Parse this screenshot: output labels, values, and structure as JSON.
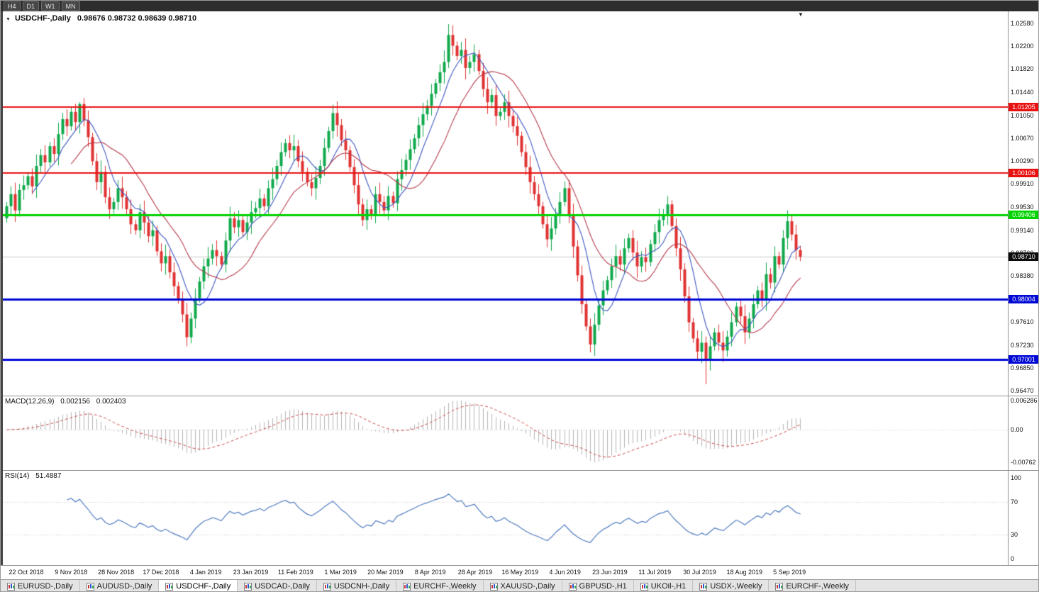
{
  "toolbar": {
    "timeframes": [
      "H4",
      "D1",
      "W1",
      "MN"
    ]
  },
  "icons": {
    "title_expander": "▼",
    "shift_marker": "▼"
  },
  "chart": {
    "title_symbol": "USDCHF-,Daily",
    "ohlc_text": "0.98676 0.98732 0.98639 0.98710",
    "current_price": "0.98710"
  },
  "chart_data": {
    "type": "candlestick",
    "symbol": "USDCHF",
    "timeframe": "Daily",
    "ylim": [
      0.9647,
      1.0258
    ],
    "y_axis_labels": [
      "1.02580",
      "1.02200",
      "1.01820",
      "1.01440",
      "1.01050",
      "1.00670",
      "1.00290",
      "0.99910",
      "0.99530",
      "0.99140",
      "0.98760",
      "0.98380",
      "0.98000",
      "0.97610",
      "0.97230",
      "0.96850",
      "0.96470"
    ],
    "x_axis_dates": [
      "22 Oct 2018",
      "9 Nov 2018",
      "28 Nov 2018",
      "17 Dec 2018",
      "4 Jan 2019",
      "23 Jan 2019",
      "11 Feb 2019",
      "1 Mar 2019",
      "20 Mar 2019",
      "8 Apr 2019",
      "28 Apr 2019",
      "16 May 2019",
      "4 Jun 2019",
      "23 Jun 2019",
      "11 Jul 2019",
      "30 Jul 2019",
      "18 Aug 2019",
      "5 Sep 2019"
    ],
    "hlines": [
      {
        "price": 1.01205,
        "label": "1.01205",
        "color": "#e81010",
        "width": 2,
        "role": "resistance"
      },
      {
        "price": 1.00106,
        "label": "1.00106",
        "color": "#e81010",
        "width": 2,
        "role": "resistance"
      },
      {
        "price": 0.99406,
        "label": "0.99406",
        "color": "#00d300",
        "width": 3,
        "role": "level"
      },
      {
        "price": 0.98004,
        "label": "0.98004",
        "color": "#0008d6",
        "width": 3,
        "role": "support"
      },
      {
        "price": 0.97001,
        "label": "0.97001",
        "color": "#0008d6",
        "width": 3,
        "role": "support"
      }
    ],
    "candles": {
      "first_open": 0.9935,
      "default_wick": 0.0012,
      "closes": [
        0.9955,
        0.9975,
        0.9948,
        0.9982,
        0.999,
        1.0005,
        0.9988,
        1.0022,
        1.004,
        1.0028,
        1.0055,
        1.0042,
        1.0075,
        1.01,
        1.0088,
        1.0112,
        1.0095,
        1.0125,
        1.0098,
        1.007,
        1.003,
        0.9995,
        1.0012,
        0.997,
        0.995,
        0.9962,
        0.9985,
        0.997,
        0.995,
        0.9925,
        0.9915,
        0.9945,
        0.9928,
        0.9905,
        0.9915,
        0.988,
        0.986,
        0.9872,
        0.9845,
        0.9822,
        0.98,
        0.9775,
        0.9737,
        0.9768,
        0.9802,
        0.983,
        0.9855,
        0.9868,
        0.9882,
        0.9872,
        0.9858,
        0.9898,
        0.9935,
        0.992,
        0.9932,
        0.9912,
        0.9928,
        0.9945,
        0.9952,
        0.9968,
        0.9955,
        0.9985,
        1.0,
        1.0022,
        1.0045,
        1.006,
        1.0048,
        1.0055,
        1.003,
        1.0012,
        0.9995,
        0.9985,
        1.0002,
        1.0022,
        1.0052,
        1.008,
        1.011,
        1.009,
        1.0065,
        1.0048,
        1.002,
        0.999,
        0.9958,
        0.9932,
        0.995,
        0.994,
        0.9975,
        0.9962,
        0.9948,
        0.9972,
        0.996,
        1.0,
        1.0015,
        1.0032,
        1.005,
        1.0068,
        1.009,
        1.0108,
        1.0122,
        1.0142,
        1.016,
        1.0178,
        1.0195,
        1.024,
        1.0222,
        1.0205,
        1.0215,
        1.0185,
        1.0195,
        1.0208,
        1.018,
        1.015,
        1.0128,
        1.014,
        1.0105,
        1.0112,
        1.0128,
        1.0105,
        1.0088,
        1.0072,
        1.0045,
        1.002,
        0.9995,
        0.9975,
        0.9955,
        0.9925,
        0.99,
        0.9918,
        0.9942,
        0.9962,
        0.9985,
        0.994,
        0.9888,
        0.984,
        0.9792,
        0.9755,
        0.9725,
        0.9758,
        0.979,
        0.9815,
        0.9832,
        0.9855,
        0.9872,
        0.9858,
        0.9885,
        0.9902,
        0.9878,
        0.9855,
        0.987,
        0.9862,
        0.9892,
        0.9912,
        0.9932,
        0.994,
        0.9958,
        0.9922,
        0.9885,
        0.985,
        0.9805,
        0.9762,
        0.9735,
        0.9713,
        0.9728,
        0.9698,
        0.9722,
        0.9745,
        0.9728,
        0.9715,
        0.9738,
        0.9762,
        0.9788,
        0.9772,
        0.9745,
        0.9768,
        0.9792,
        0.9815,
        0.98,
        0.9842,
        0.9828,
        0.9872,
        0.9858,
        0.9902,
        0.993,
        0.9908,
        0.9882,
        0.9871
      ],
      "wick_overrides": {
        "17": {
          "h": 1.0128
        },
        "42": {
          "l": 0.9722
        },
        "76": {
          "h": 1.0124
        },
        "103": {
          "h": 1.0258
        },
        "130": {
          "h": 0.9996
        },
        "154": {
          "h": 0.9972
        },
        "163": {
          "l": 0.9659
        },
        "182": {
          "h": 0.9948
        }
      }
    },
    "overlays": [
      {
        "name": "ma-fast",
        "type": "sma",
        "period": 7,
        "color": "#3c55c0"
      },
      {
        "name": "ma-slow",
        "type": "sma",
        "period": 16,
        "color": "#b43a4a"
      }
    ],
    "indicators": [
      {
        "name": "MACD",
        "label": "MACD(12,26,9)",
        "values_text": [
          "0.002156",
          "0.002403"
        ],
        "axis_labels": [
          "0.006286",
          "0.00",
          "-0.00762"
        ],
        "params": [
          12,
          26,
          9
        ]
      },
      {
        "name": "RSI",
        "label": "RSI(14)",
        "value_text": "51.4887",
        "axis_labels": [
          "100",
          "70",
          "30",
          "0"
        ],
        "levels": [
          70,
          30
        ],
        "period": 14
      }
    ],
    "colors": {
      "up": "#10a94c",
      "down": "#e03232",
      "ma_fast": "#3c55c0",
      "ma_slow": "#b43a4a",
      "macd_hist": "#b5b5b5",
      "macd_signal": "#cc4848",
      "rsi": "#4f7bbf",
      "current_price_line": "#c8c8c8"
    }
  },
  "tabs": {
    "active_index": 2,
    "items": [
      {
        "label": "EURUSD-,Daily"
      },
      {
        "label": "AUDUSD-,Daily"
      },
      {
        "label": "USDCHF-,Daily"
      },
      {
        "label": "USDCAD-,Daily"
      },
      {
        "label": "USDCNH-,Daily"
      },
      {
        "label": "EURCHF-,Weekly"
      },
      {
        "label": "XAUUSD-,Daily"
      },
      {
        "label": "GBPUSD-,H1"
      },
      {
        "label": "UKOil-,H1"
      },
      {
        "label": "USDX-,Weekly"
      },
      {
        "label": "EURCHF-,Weekly"
      }
    ]
  }
}
